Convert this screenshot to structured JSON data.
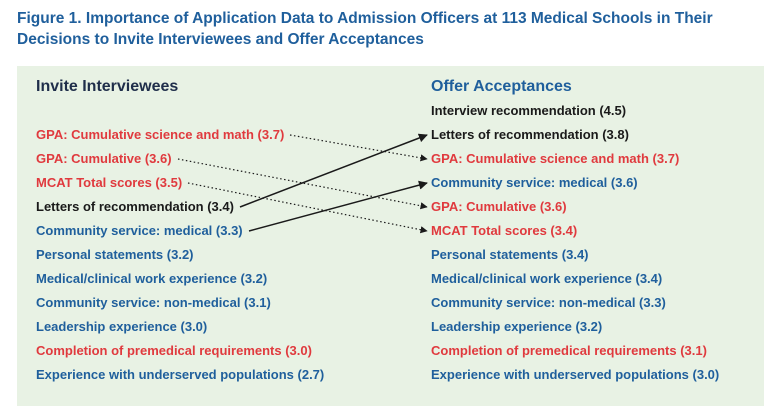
{
  "title": "Figure 1. Importance of Application Data to Admission Officers at 113 Medical Schools in Their Decisions to Invite Interviewees and Offer Acceptances",
  "colors": {
    "title": "#1f5f9c",
    "panel_background": "#e8f2e4",
    "red": "#e03a3e",
    "blue": "#1f5f9c",
    "black": "#1a1a1a"
  },
  "invite": {
    "heading": "Invite Interviewees",
    "items": [
      {
        "label": "GPA: Cumulative science and math (3.7)",
        "color": "red"
      },
      {
        "label": "GPA: Cumulative (3.6)",
        "color": "red"
      },
      {
        "label": "MCAT Total scores (3.5)",
        "color": "red"
      },
      {
        "label": "Letters of recommendation (3.4)",
        "color": "black"
      },
      {
        "label": "Community service: medical (3.3)",
        "color": "blue"
      },
      {
        "label": "Personal statements (3.2)",
        "color": "blue"
      },
      {
        "label": "Medical/clinical work experience (3.2)",
        "color": "blue"
      },
      {
        "label": "Community service: non-medical (3.1)",
        "color": "blue"
      },
      {
        "label": "Leadership experience (3.0)",
        "color": "blue"
      },
      {
        "label": "Completion of premedical requirements (3.0)",
        "color": "red"
      },
      {
        "label": "Experience with underserved populations (2.7)",
        "color": "blue"
      }
    ]
  },
  "offer": {
    "heading": "Offer Acceptances",
    "items": [
      {
        "label": "Interview recommendation (4.5)",
        "color": "black"
      },
      {
        "label": "Letters of recommendation (3.8)",
        "color": "black"
      },
      {
        "label": "GPA: Cumulative science and math (3.7)",
        "color": "red"
      },
      {
        "label": "Community service: medical (3.6)",
        "color": "blue"
      },
      {
        "label": "GPA: Cumulative (3.6)",
        "color": "red"
      },
      {
        "label": "MCAT Total scores (3.4)",
        "color": "red"
      },
      {
        "label": "Personal statements (3.4)",
        "color": "blue"
      },
      {
        "label": "Medical/clinical work experience (3.4)",
        "color": "blue"
      },
      {
        "label": "Community service: non-medical (3.3)",
        "color": "blue"
      },
      {
        "label": "Leadership experience (3.2)",
        "color": "blue"
      },
      {
        "label": "Completion of premedical requirements (3.1)",
        "color": "red"
      },
      {
        "label": "Experience with underserved populations (3.0)",
        "color": "blue"
      }
    ]
  },
  "connections": [
    {
      "from": 0,
      "to": 2,
      "style": "dotted"
    },
    {
      "from": 1,
      "to": 4,
      "style": "dotted"
    },
    {
      "from": 2,
      "to": 5,
      "style": "dotted"
    },
    {
      "from": 3,
      "to": 1,
      "style": "solid"
    },
    {
      "from": 4,
      "to": 3,
      "style": "solid"
    }
  ]
}
